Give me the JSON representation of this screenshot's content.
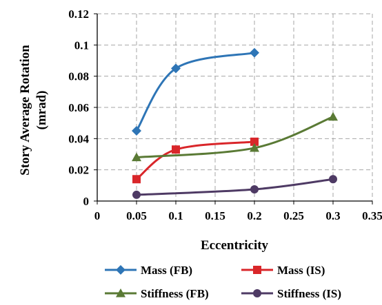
{
  "chart_data": {
    "type": "line",
    "xlabel": "Eccentricity",
    "ylabel_line1": "Story  Average Rotation",
    "ylabel_line2": "(mrad)",
    "xlim": [
      0,
      0.35
    ],
    "ylim": [
      0,
      0.12
    ],
    "x_ticks": [
      0,
      0.05,
      0.1,
      0.15,
      0.2,
      0.25,
      0.3,
      0.35
    ],
    "x_tick_labels": [
      "0",
      "0.05",
      "0.1",
      "0.15",
      "0.2",
      "0.25",
      "0.3",
      "0.35"
    ],
    "y_ticks": [
      0,
      0.02,
      0.04,
      0.06,
      0.08,
      0.1,
      0.12
    ],
    "y_tick_labels": [
      "0",
      "0.02",
      "0.04",
      "0.06",
      "0.08",
      "0.1",
      "0.12"
    ],
    "grid": "dashed",
    "legend_position": "bottom",
    "series": [
      {
        "name": "Mass (FB)",
        "color": "#2E75B6",
        "marker": "diamond",
        "points": [
          [
            0.05,
            0.045
          ],
          [
            0.1,
            0.085
          ],
          [
            0.2,
            0.095
          ]
        ]
      },
      {
        "name": "Mass (IS)",
        "color": "#D9262A",
        "marker": "square",
        "points": [
          [
            0.05,
            0.014
          ],
          [
            0.1,
            0.033
          ],
          [
            0.2,
            0.038
          ]
        ]
      },
      {
        "name": "Stiffness (FB)",
        "color": "#5A7A35",
        "marker": "triangle",
        "points": [
          [
            0.05,
            0.028
          ],
          [
            0.2,
            0.034
          ],
          [
            0.3,
            0.054
          ]
        ]
      },
      {
        "name": "Stiffness (IS)",
        "color": "#4E3A64",
        "marker": "circle",
        "points": [
          [
            0.05,
            0.004
          ],
          [
            0.2,
            0.0075
          ],
          [
            0.3,
            0.014
          ]
        ]
      }
    ]
  }
}
